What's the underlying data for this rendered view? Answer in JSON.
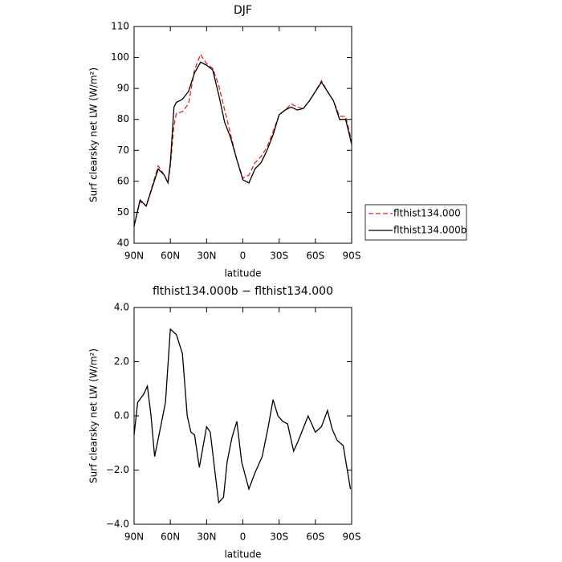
{
  "chart_data": [
    {
      "type": "line",
      "title": "DJF",
      "xlabel": "latitude",
      "ylabel": "Surf clearsky net LW (W/m²)",
      "x": [
        90,
        85,
        80,
        75,
        70,
        65,
        62,
        60,
        57,
        55,
        50,
        45,
        40,
        35,
        30,
        25,
        20,
        15,
        10,
        5,
        0,
        -5,
        -10,
        -15,
        -20,
        -25,
        -30,
        -35,
        -40,
        -45,
        -50,
        -55,
        -60,
        -65,
        -70,
        -75,
        -80,
        -85,
        -90
      ],
      "xlim": [
        90,
        -90
      ],
      "xticks": [
        {
          "value": 90,
          "label": "90N"
        },
        {
          "value": 60,
          "label": "60N"
        },
        {
          "value": 30,
          "label": "30N"
        },
        0,
        {
          "value": -30,
          "label": "30S"
        },
        {
          "value": -60,
          "label": "60S"
        },
        {
          "value": -90,
          "label": "90S"
        }
      ],
      "ylim": [
        40,
        110
      ],
      "yticks": [
        40,
        50,
        60,
        70,
        80,
        90,
        100,
        110
      ],
      "legend": "right",
      "series": [
        {
          "name": "flthist134.000",
          "color": "#e8201c",
          "dashed": true,
          "values": [
            46,
            53.5,
            52,
            58.5,
            65,
            62,
            59.5,
            65,
            78,
            82,
            82.5,
            85,
            96,
            101,
            98,
            96.5,
            91,
            83,
            75,
            67,
            61,
            62,
            66,
            68,
            71,
            76,
            81.5,
            83,
            85,
            84,
            83.5,
            86,
            89,
            92.5,
            89,
            86,
            81,
            81,
            73
          ]
        },
        {
          "name": "flthist134.000b",
          "color": "#000000",
          "dashed": false,
          "values": [
            45.5,
            54,
            52,
            58,
            64,
            62,
            59.5,
            66,
            84,
            85.5,
            86.5,
            89,
            95,
            98.5,
            97.5,
            96,
            88,
            79,
            74,
            67,
            60.5,
            59.5,
            64,
            66,
            70,
            75,
            81.5,
            83,
            84,
            83,
            83.5,
            86,
            89,
            92,
            89,
            86,
            80,
            80,
            72
          ]
        }
      ]
    },
    {
      "type": "line",
      "title": "flthist134.000b − flthist134.000",
      "xlabel": "latitude",
      "ylabel": "Surf clearsky net LW (W/m²)",
      "x": [
        90,
        87,
        82,
        79,
        76,
        73,
        68,
        64,
        60,
        55,
        50,
        46,
        43,
        40,
        36,
        30,
        27,
        23,
        20,
        16,
        13,
        9,
        5,
        1,
        -5,
        -10,
        -16,
        -21,
        -25,
        -29,
        -33,
        -37,
        -42,
        -46,
        -54,
        -60,
        -65,
        -70,
        -74,
        -78,
        -83,
        -89
      ],
      "xlim": [
        90,
        -90
      ],
      "xticks": [
        {
          "value": 90,
          "label": "90N"
        },
        {
          "value": 60,
          "label": "60N"
        },
        {
          "value": 30,
          "label": "30N"
        },
        0,
        {
          "value": -30,
          "label": "30S"
        },
        {
          "value": -60,
          "label": "60S"
        },
        {
          "value": -90,
          "label": "90S"
        }
      ],
      "ylim": [
        -4,
        4
      ],
      "yticks": [
        {
          "value": -4,
          "label": "−4.0"
        },
        {
          "value": -2,
          "label": "−2.0"
        },
        {
          "value": 0,
          "label": "0.0"
        },
        {
          "value": 2,
          "label": "2.0"
        },
        {
          "value": 4,
          "label": "4.0"
        }
      ],
      "color": "#000000",
      "values": [
        -0.7,
        0.5,
        0.8,
        1.1,
        0,
        -1.5,
        -0.4,
        0.5,
        3.2,
        3.0,
        2.3,
        0,
        -0.6,
        -0.7,
        -1.9,
        -0.4,
        -0.6,
        -2.1,
        -3.2,
        -3.0,
        -1.7,
        -0.8,
        -0.2,
        -1.7,
        -2.7,
        -2.1,
        -1.5,
        -0.4,
        0.6,
        0,
        -0.2,
        -0.3,
        -1.3,
        -0.9,
        0,
        -0.6,
        -0.4,
        0.2,
        -0.5,
        -0.9,
        -1.1,
        -2.7
      ]
    }
  ]
}
